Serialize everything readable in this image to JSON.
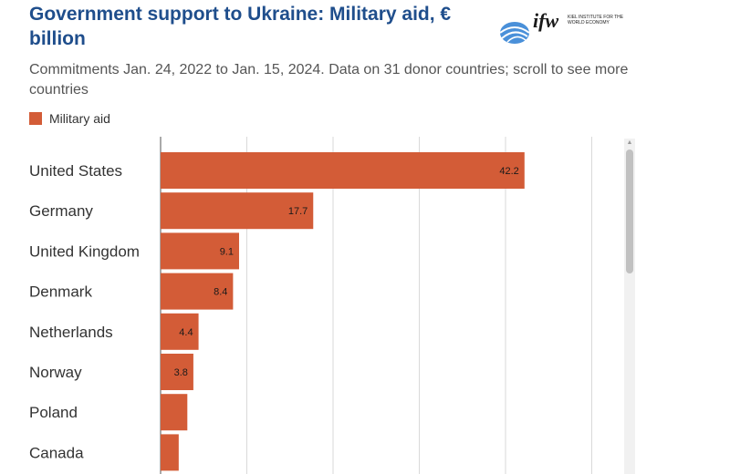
{
  "header": {
    "title": "Government support to Ukraine: Military aid, € billion",
    "subtitle": "Commitments Jan. 24, 2022 to Jan. 15, 2024. Data on 31 donor countries; scroll to see more countries"
  },
  "logo": {
    "word": "ifw",
    "text": "KIEL INSTITUTE FOR THE WORLD ECONOMY"
  },
  "legend": {
    "label": "Military aid"
  },
  "colors": {
    "bar": "#d35c37",
    "grid": "#d9d9d9",
    "title": "#1f4e8c"
  },
  "chart_data": {
    "type": "bar",
    "orientation": "horizontal",
    "categories": [
      "United States",
      "Germany",
      "United Kingdom",
      "Denmark",
      "Netherlands",
      "Norway",
      "Poland",
      "Canada"
    ],
    "series": [
      {
        "name": "Military aid",
        "values": [
          42.2,
          17.7,
          9.1,
          8.4,
          4.4,
          3.8,
          3.1,
          2.1
        ]
      }
    ],
    "data_labels": [
      "42.2",
      "17.7",
      "9.1",
      "8.4",
      "4.4",
      "3.8",
      "",
      ""
    ],
    "xlim": [
      0,
      50
    ],
    "grid": true,
    "legend_position": "top-left",
    "scrollable": true
  }
}
